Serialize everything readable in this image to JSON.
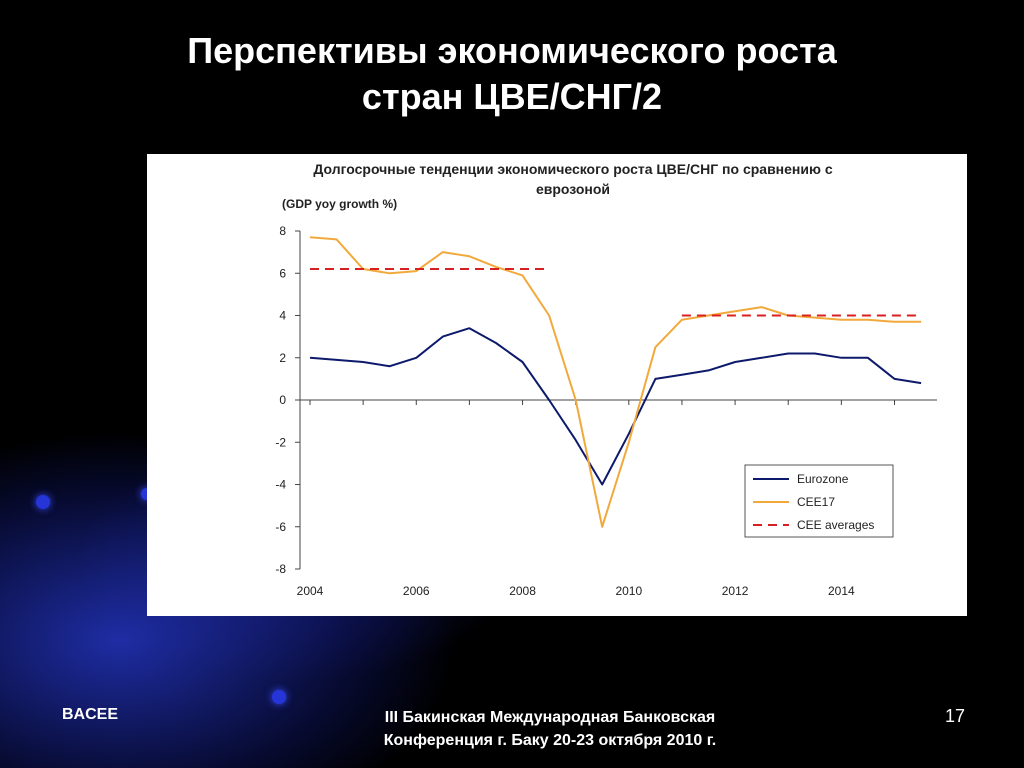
{
  "slide": {
    "title_line1": "Перспективы экономического роста",
    "title_line2": "стран ЦВЕ/СНГ/2",
    "footer_left": "BACEE",
    "footer_center_line1": "III Бакинская Международная Банковская",
    "footer_center_line2": "Конференция г. Баку 20-23 октября 2010 г.",
    "page_number": "17"
  },
  "chart_data": {
    "type": "line",
    "title_line1": "Долгосрочные тенденции экономического роста ЦВЕ/СНГ по сравнению с",
    "title_line2": "еврозоной",
    "ylabel": "(GDP yoy growth %)",
    "ylim": [
      -8,
      8
    ],
    "yticks": [
      8,
      6,
      4,
      2,
      0,
      -2,
      -4,
      -6,
      -8
    ],
    "xlim": [
      2004,
      2015.8
    ],
    "xticks": [
      2004,
      2006,
      2008,
      2010,
      2012,
      2014
    ],
    "legend_position": "bottom-right",
    "series": [
      {
        "name": "Eurozone",
        "color": "#0d1a6b",
        "style": "solid",
        "x": [
          2004,
          2004.5,
          2005,
          2005.5,
          2006,
          2006.5,
          2007,
          2007.5,
          2008,
          2008.5,
          2009,
          2009.5,
          2010,
          2010.5,
          2011,
          2011.5,
          2012,
          2012.5,
          2013,
          2013.5,
          2014,
          2014.5,
          2015,
          2015.5
        ],
        "y": [
          2.0,
          1.9,
          1.8,
          1.6,
          2.0,
          3.0,
          3.4,
          2.7,
          1.8,
          0.0,
          -1.9,
          -4.0,
          -1.6,
          1.0,
          1.2,
          1.4,
          1.8,
          2.0,
          2.2,
          2.2,
          2.0,
          2.0,
          1.0,
          0.8
        ]
      },
      {
        "name": "CEE17",
        "color": "#f2a93b",
        "style": "solid",
        "x": [
          2004,
          2004.5,
          2005,
          2005.5,
          2006,
          2006.5,
          2007,
          2007.5,
          2008,
          2008.5,
          2009,
          2009.5,
          2010,
          2010.5,
          2011,
          2011.5,
          2012,
          2012.5,
          2013,
          2013.5,
          2014,
          2014.5,
          2015,
          2015.5
        ],
        "y": [
          7.7,
          7.6,
          6.2,
          6.0,
          6.1,
          7.0,
          6.8,
          6.3,
          5.9,
          4.0,
          0.0,
          -6.0,
          -2.0,
          2.5,
          3.8,
          4.0,
          4.2,
          4.4,
          4.0,
          3.9,
          3.8,
          3.8,
          3.7,
          3.7
        ]
      },
      {
        "name": "CEE averages",
        "color": "#d92020",
        "style": "dashed",
        "segments": [
          {
            "x": [
              2004,
              2008.5
            ],
            "y": [
              6.2,
              6.2
            ]
          },
          {
            "x": [
              2011,
              2015.5
            ],
            "y": [
              4.0,
              4.0
            ]
          }
        ]
      }
    ]
  }
}
